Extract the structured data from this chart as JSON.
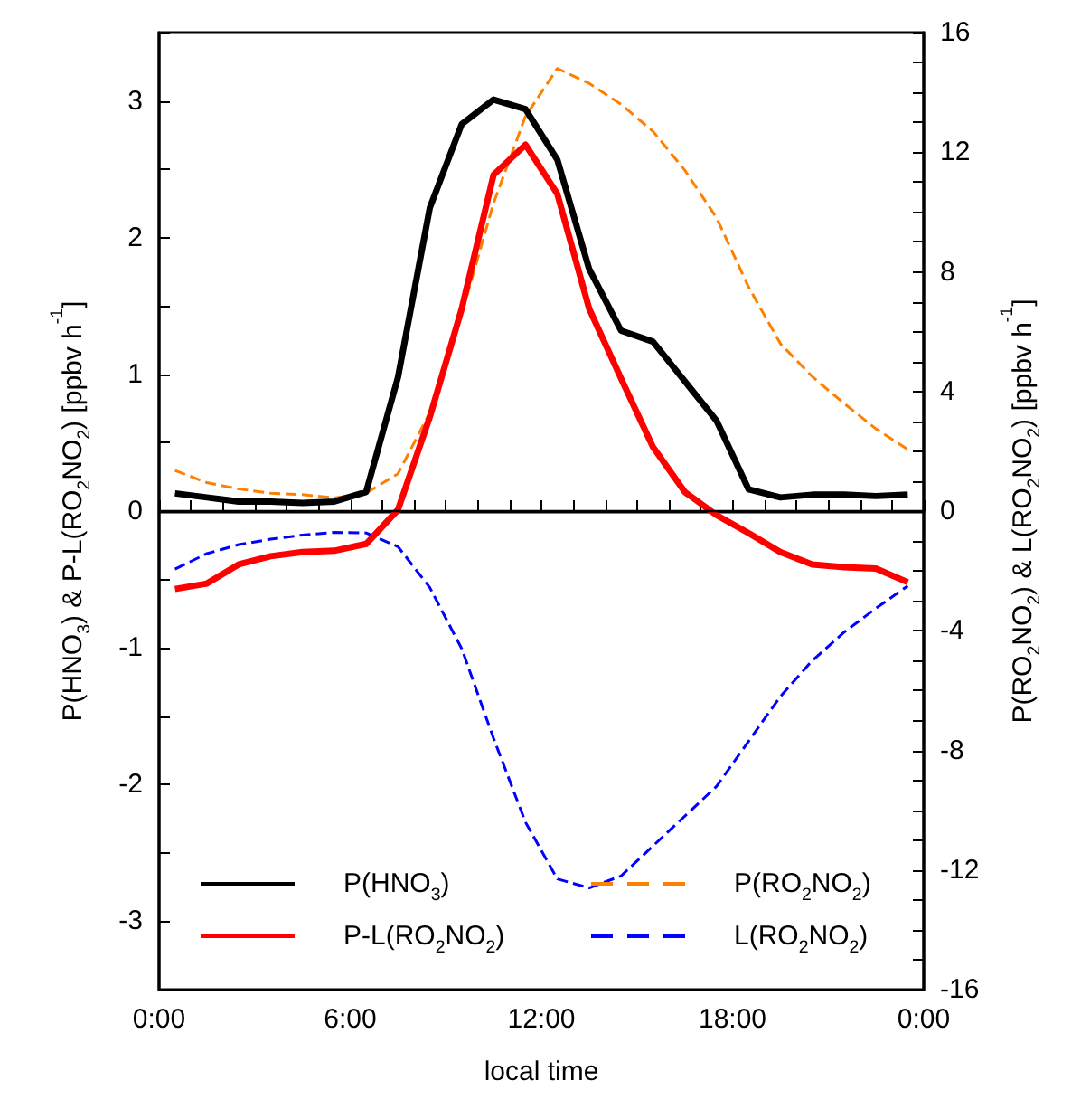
{
  "chart_data": {
    "type": "line",
    "xlabel": "local time",
    "ylabel": "P(HNO$_{3}$) & P-L(RO$_{2}$NO$_{2}$) [ppbv h$^{-1}$]",
    "y2label": "P(RO$_{2}$NO$_{2}$) & L(RO$_{2}$NO$_{2}$) [ppbv h$^{-1}$]",
    "x": [
      0.5,
      1.5,
      2.5,
      3.5,
      4.5,
      5.5,
      6.5,
      7.5,
      8.5,
      9.5,
      10.5,
      11.5,
      12.5,
      13.5,
      14.5,
      15.5,
      16.5,
      17.5,
      18.5,
      19.5,
      20.5,
      21.5,
      22.5,
      23.5
    ],
    "series": [
      {
        "name": "P(HNO$_{3}$)",
        "color": "#000000",
        "line_style": "solid",
        "values": [
          0.13,
          0.1,
          0.07,
          0.07,
          0.06,
          0.07,
          0.14,
          0.98,
          2.22,
          2.83,
          3.01,
          2.94,
          2.57,
          1.77,
          1.32,
          1.24,
          0.95,
          0.66,
          0.16,
          0.1,
          0.12,
          0.12,
          0.11,
          0.12
        ]
      },
      {
        "name": "P-L(RO$_{2}$NO$_{2}$)",
        "color": "#ff0000",
        "line_style": "solid",
        "values": [
          -0.57,
          -0.53,
          -0.39,
          -0.33,
          -0.3,
          -0.29,
          -0.24,
          0.01,
          0.69,
          1.48,
          2.46,
          2.68,
          2.32,
          1.48,
          0.97,
          0.47,
          0.14,
          -0.03,
          -0.16,
          -0.3,
          -0.39,
          -0.41,
          -0.42,
          -0.52
        ]
      },
      {
        "name": "P(RO$_{2}$NO$_{2}$)",
        "color": "#ff8000",
        "line_style": "dashed",
        "axis": "y2",
        "values": [
          1.36,
          0.95,
          0.74,
          0.6,
          0.55,
          0.44,
          0.6,
          1.25,
          3.3,
          6.6,
          10.3,
          13.2,
          14.8,
          14.3,
          13.6,
          12.7,
          11.4,
          9.8,
          7.5,
          5.6,
          4.5,
          3.6,
          2.75,
          2.06
        ]
      },
      {
        "name": "L(RO$_{2}$NO$_{2}$)",
        "color": "#0000ff",
        "line_style": "dashed",
        "axis": "y2",
        "values": [
          -1.94,
          -1.42,
          -1.12,
          -0.94,
          -0.8,
          -0.71,
          -0.73,
          -1.19,
          -2.56,
          -4.6,
          -7.6,
          -10.4,
          -12.3,
          -12.6,
          -12.2,
          -11.2,
          -10.2,
          -9.2,
          -7.7,
          -6.2,
          -5.0,
          -4.05,
          -3.25,
          -2.5
        ]
      }
    ],
    "xlim": [
      0,
      24
    ],
    "xticks": [
      {
        "value": 0,
        "label": "0:00"
      },
      {
        "value": 1,
        "label": null
      },
      {
        "value": 2,
        "label": null
      },
      {
        "value": 3,
        "label": null
      },
      {
        "value": 4,
        "label": null
      },
      {
        "value": 5,
        "label": null
      },
      {
        "value": 6,
        "label": "6:00"
      },
      {
        "value": 7,
        "label": null
      },
      {
        "value": 8,
        "label": null
      },
      {
        "value": 9,
        "label": null
      },
      {
        "value": 10,
        "label": null
      },
      {
        "value": 11,
        "label": null
      },
      {
        "value": 12,
        "label": "12:00"
      },
      {
        "value": 13,
        "label": null
      },
      {
        "value": 14,
        "label": null
      },
      {
        "value": 15,
        "label": null
      },
      {
        "value": 16,
        "label": null
      },
      {
        "value": 17,
        "label": null
      },
      {
        "value": 18,
        "label": "18:00"
      },
      {
        "value": 19,
        "label": null
      },
      {
        "value": 20,
        "label": null
      },
      {
        "value": 21,
        "label": null
      },
      {
        "value": 22,
        "label": null
      },
      {
        "value": 23,
        "label": null
      },
      {
        "value": 24,
        "label": "0:00"
      }
    ],
    "ylim": [
      -3.5,
      3.5
    ],
    "yticks": [
      {
        "value": -3.5,
        "label": null
      },
      -3,
      {
        "value": -2.5,
        "label": null
      },
      -2,
      {
        "value": -1.5,
        "label": null
      },
      -1,
      {
        "value": -0.5,
        "label": null
      },
      0,
      {
        "value": 0.5,
        "label": null
      },
      1,
      {
        "value": 1.5,
        "label": null
      },
      2,
      {
        "value": 2.5,
        "label": null
      },
      3,
      {
        "value": 3.5,
        "label": null
      }
    ],
    "y2lim": [
      -16,
      16
    ],
    "y2ticks": [
      -16,
      {
        "value": -15,
        "label": null
      },
      {
        "value": -14,
        "label": null
      },
      {
        "value": -13,
        "label": null
      },
      -12,
      {
        "value": -11,
        "label": null
      },
      {
        "value": -10,
        "label": null
      },
      {
        "value": -9,
        "label": null
      },
      -8,
      {
        "value": -7,
        "label": null
      },
      {
        "value": -6,
        "label": null
      },
      {
        "value": -5,
        "label": null
      },
      -4,
      {
        "value": -3,
        "label": null
      },
      {
        "value": -2,
        "label": null
      },
      {
        "value": -1,
        "label": null
      },
      0,
      {
        "value": 1,
        "label": null
      },
      {
        "value": 2,
        "label": null
      },
      {
        "value": 3,
        "label": null
      },
      4,
      {
        "value": 5,
        "label": null
      },
      {
        "value": 6,
        "label": null
      },
      {
        "value": 7,
        "label": null
      },
      8,
      {
        "value": 9,
        "label": null
      },
      {
        "value": 10,
        "label": null
      },
      {
        "value": 11,
        "label": null
      },
      12,
      {
        "value": 13,
        "label": null
      },
      {
        "value": 14,
        "label": null
      },
      {
        "value": 15,
        "label": null
      },
      16
    ],
    "ref_lines": [
      {
        "axis": "y",
        "value": 0,
        "color": "#000000",
        "line_style": "solid"
      }
    ],
    "grid": false,
    "legend": "bottom",
    "marker": "none"
  }
}
